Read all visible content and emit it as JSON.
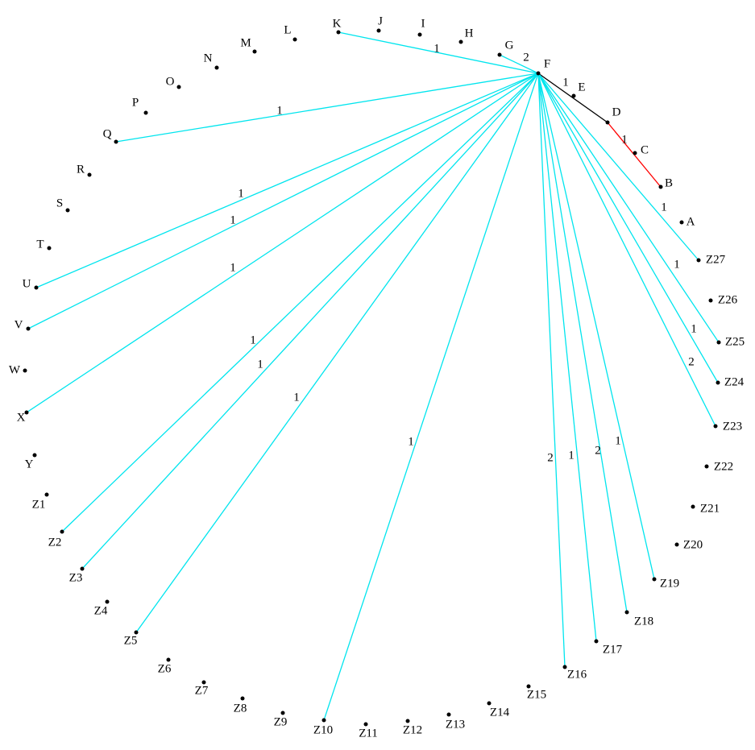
{
  "nodes": [
    {
      "label": "K"
    },
    {
      "label": "J"
    },
    {
      "label": "I"
    },
    {
      "label": "H"
    },
    {
      "label": "G"
    },
    {
      "label": "F"
    },
    {
      "label": "E"
    },
    {
      "label": "D"
    },
    {
      "label": "C"
    },
    {
      "label": "B"
    },
    {
      "label": "A"
    },
    {
      "label": "Z27"
    },
    {
      "label": "Z26"
    },
    {
      "label": "Z25"
    },
    {
      "label": "Z24"
    },
    {
      "label": "Z23"
    },
    {
      "label": "Z22"
    },
    {
      "label": "Z21"
    },
    {
      "label": "Z20"
    },
    {
      "label": "Z19"
    },
    {
      "label": "Z18"
    },
    {
      "label": "Z17"
    },
    {
      "label": "Z16"
    },
    {
      "label": "Z15"
    },
    {
      "label": "Z14"
    },
    {
      "label": "Z13"
    },
    {
      "label": "Z12"
    },
    {
      "label": "Z11"
    },
    {
      "label": "Z10"
    },
    {
      "label": "Z9"
    },
    {
      "label": "Z8"
    },
    {
      "label": "Z7"
    },
    {
      "label": "Z6"
    },
    {
      "label": "Z5"
    },
    {
      "label": "Z4"
    },
    {
      "label": "Z3"
    },
    {
      "label": "Z2"
    },
    {
      "label": "Z1"
    },
    {
      "label": "Y"
    },
    {
      "label": "X"
    },
    {
      "label": "W"
    },
    {
      "label": "V"
    },
    {
      "label": "U"
    },
    {
      "label": "T"
    },
    {
      "label": "S"
    },
    {
      "label": "R"
    },
    {
      "label": "Q"
    },
    {
      "label": "P"
    },
    {
      "label": "O"
    },
    {
      "label": "N"
    },
    {
      "label": "M"
    },
    {
      "label": "L"
    }
  ],
  "edges": [
    {
      "weight": 1,
      "color": "#00e5ee"
    },
    {
      "weight": 2,
      "color": "#00e5ee"
    },
    {
      "weight": 1,
      "color": "#000000"
    },
    {
      "weight": 1,
      "color": "#ff0000"
    },
    {
      "weight": 1,
      "color": "#00e5ee"
    },
    {
      "weight": 1,
      "color": "#00e5ee"
    },
    {
      "weight": 1,
      "color": "#00e5ee"
    },
    {
      "weight": 1,
      "color": "#00e5ee"
    },
    {
      "weight": 1,
      "color": "#00e5ee"
    },
    {
      "weight": 1,
      "color": "#00e5ee"
    },
    {
      "weight": 1,
      "color": "#00e5ee"
    },
    {
      "weight": 1,
      "color": "#00e5ee"
    },
    {
      "weight": 2,
      "color": "#00e5ee"
    },
    {
      "weight": 1,
      "color": "#00e5ee"
    },
    {
      "weight": 2,
      "color": "#00e5ee"
    },
    {
      "weight": 1,
      "color": "#00e5ee"
    },
    {
      "weight": 2,
      "color": "#00e5ee"
    },
    {
      "weight": 1,
      "color": "#00e5ee"
    },
    {
      "weight": 1,
      "color": "#00e5ee"
    },
    {
      "weight": 1,
      "color": "#00e5ee"
    }
  ]
}
